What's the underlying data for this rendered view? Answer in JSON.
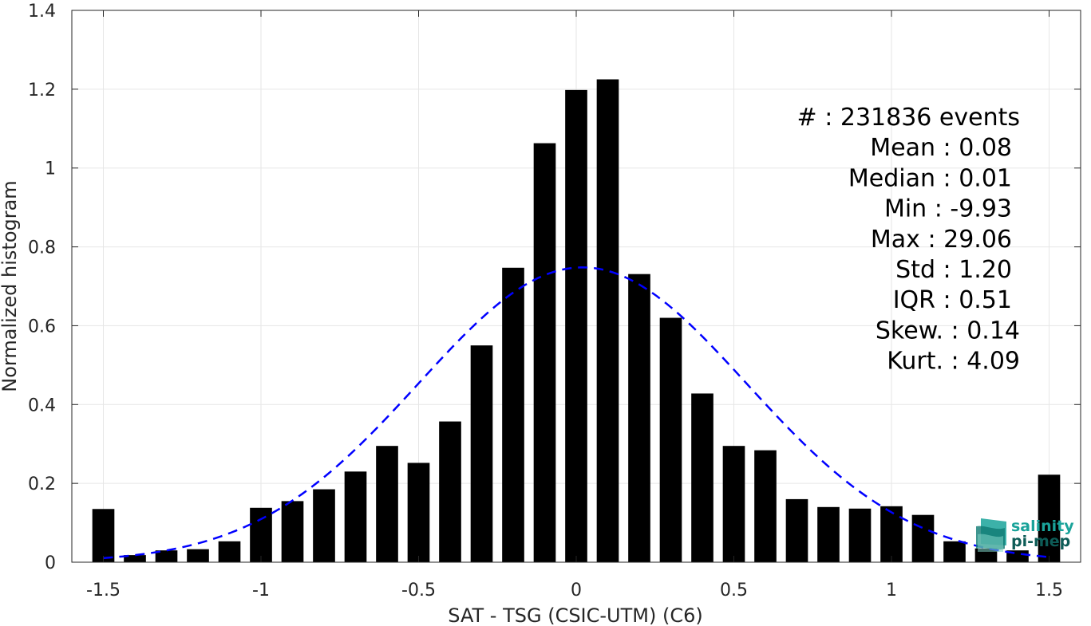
{
  "chart_data": {
    "type": "bar",
    "xlabel": "SAT - TSG (CSIC-UTM) (C6)",
    "ylabel": "Normalized histogram",
    "xlim": [
      -1.6,
      1.6
    ],
    "ylim": [
      0,
      1.4
    ],
    "xticks": [
      -1.5,
      -1,
      -0.5,
      0,
      0.5,
      1,
      1.5
    ],
    "xtick_labels": [
      "-1.5",
      "-1",
      "-0.5",
      "0",
      "0.5",
      "1",
      "1.5"
    ],
    "yticks": [
      0,
      0.2,
      0.4,
      0.6,
      0.8,
      1,
      1.2,
      1.4
    ],
    "ytick_labels": [
      "0",
      "0.2",
      "0.4",
      "0.6",
      "0.8",
      "1",
      "1.2",
      "1.4"
    ],
    "grid": true,
    "bar_width": 0.07,
    "bar_color": "#000000",
    "bins": [
      -1.5,
      -1.4,
      -1.3,
      -1.2,
      -1.1,
      -1.0,
      -0.9,
      -0.8,
      -0.7,
      -0.6,
      -0.5,
      -0.4,
      -0.3,
      -0.2,
      -0.1,
      0.0,
      0.1,
      0.2,
      0.3,
      0.4,
      0.5,
      0.6,
      0.7,
      0.8,
      0.9,
      1.0,
      1.1,
      1.2,
      1.3,
      1.4,
      1.5
    ],
    "values": [
      0.135,
      0.018,
      0.03,
      0.033,
      0.053,
      0.138,
      0.155,
      0.185,
      0.23,
      0.295,
      0.252,
      0.357,
      0.55,
      0.747,
      1.063,
      1.198,
      1.225,
      0.731,
      0.62,
      0.428,
      0.295,
      0.284,
      0.16,
      0.14,
      0.136,
      0.142,
      0.12,
      0.053,
      0.035,
      0.03,
      0.222
    ],
    "fit_curve": {
      "type": "gaussian",
      "style": "dashed",
      "color": "#0000ff",
      "mean": 0.02,
      "peak": 0.748,
      "sigma": 0.52,
      "x_range": [
        -1.5,
        1.5
      ]
    },
    "stats": [
      {
        "label": "#  : 231836 events"
      },
      {
        "label": "Mean : 0.08"
      },
      {
        "label": "Median : 0.01"
      },
      {
        "label": "Min : -9.93"
      },
      {
        "label": "Max : 29.06"
      },
      {
        "label": "Std : 1.20"
      },
      {
        "label": "IQR : 0.51"
      },
      {
        "label": "Skew. : 0.14"
      },
      {
        "label": "Kurt. : 4.09"
      }
    ]
  },
  "logo": {
    "line1": "salinity",
    "line2": "pi-mep",
    "color_top": "#1aa39a",
    "color_bottom": "#0d5c57"
  }
}
